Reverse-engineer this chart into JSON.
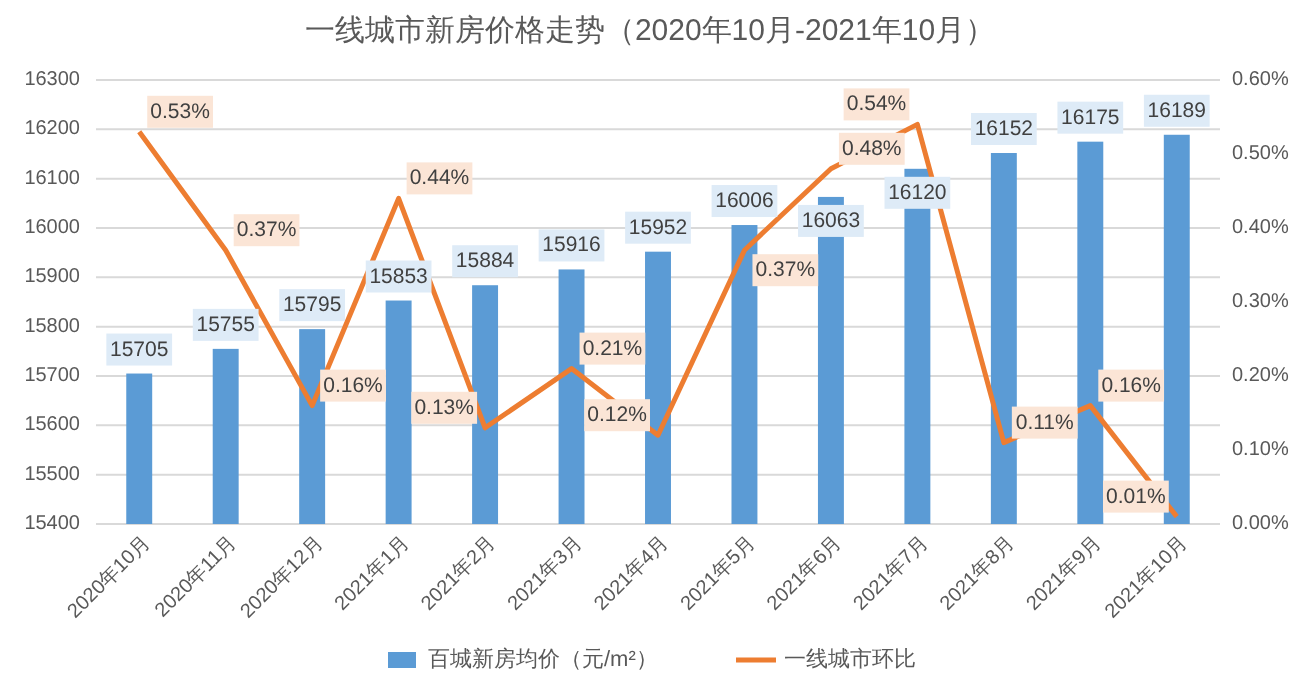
{
  "chart_data": {
    "type": "bar",
    "title": "一线城市新房价格走势（2020年10月-2021年10月）",
    "categories": [
      "2020年10月",
      "2020年11月",
      "2020年12月",
      "2021年1月",
      "2021年2月",
      "2021年3月",
      "2021年4月",
      "2021年5月",
      "2021年6月",
      "2021年7月",
      "2021年8月",
      "2021年9月",
      "2021年10月"
    ],
    "series": [
      {
        "name": "百城新房均价（元/m²）",
        "color": "#5b9bd5",
        "values": [
          15705,
          15755,
          15795,
          15853,
          15884,
          15916,
          15952,
          16006,
          16063,
          16120,
          16152,
          16175,
          16189
        ],
        "value_labels": [
          "15705",
          "15755",
          "15795",
          "15853",
          "15884",
          "15916",
          "15952",
          "16006",
          "16063",
          "16120",
          "16152",
          "16175",
          "16189"
        ]
      },
      {
        "name": "一线城市环比",
        "type": "line",
        "axis": "y2",
        "color": "#ed7d31",
        "values": [
          0.53,
          0.37,
          0.16,
          0.44,
          0.13,
          0.21,
          0.12,
          0.37,
          0.48,
          0.54,
          0.11,
          0.16,
          0.01
        ],
        "value_labels": [
          "0.53%",
          "0.37%",
          "0.16%",
          "0.44%",
          "0.13%",
          "0.21%",
          "0.12%",
          "0.37%",
          "0.48%",
          "0.54%",
          "0.11%",
          "0.16%",
          "0.01%"
        ]
      }
    ],
    "ylim": [
      15400,
      16300
    ],
    "yticks": [
      15400,
      15500,
      15600,
      15700,
      15800,
      15900,
      16000,
      16100,
      16200,
      16300
    ],
    "y2lim": [
      0,
      0.6
    ],
    "y2ticks": [
      {
        "value": 0,
        "label": "0.00%"
      },
      {
        "value": 0.1,
        "label": "0.10%"
      },
      {
        "value": 0.2,
        "label": "0.20%"
      },
      {
        "value": 0.3,
        "label": "0.30%"
      },
      {
        "value": 0.4,
        "label": "0.40%"
      },
      {
        "value": 0.5,
        "label": "0.50%"
      },
      {
        "value": 0.6,
        "label": "0.60%"
      }
    ],
    "grid": "y",
    "legend": "bottom",
    "marker": "none",
    "line_style": "solid"
  }
}
